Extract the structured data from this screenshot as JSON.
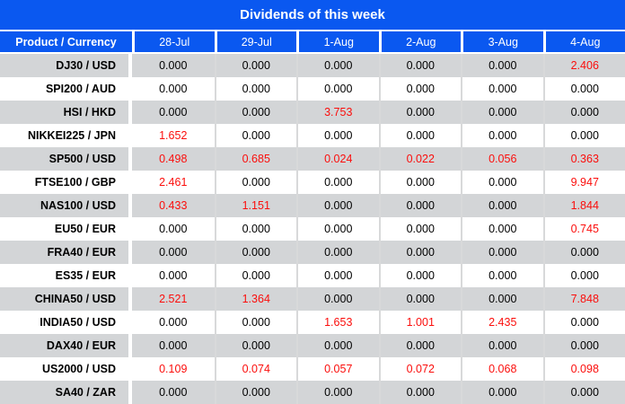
{
  "title": "Dividends of this week",
  "colors": {
    "accent_blue": "#0a58f0",
    "row_gray": "#d3d5d7",
    "value_red": "#fb0e0c",
    "value_black": "#000000"
  },
  "chart_data": {
    "type": "table",
    "title": "Dividends of this week",
    "columns": [
      "Product / Currency",
      "28-Jul",
      "29-Jul",
      "1-Aug",
      "2-Aug",
      "3-Aug",
      "4-Aug"
    ],
    "rows": [
      {
        "product": "DJ30 / USD",
        "values": [
          "0.000",
          "0.000",
          "0.000",
          "0.000",
          "0.000",
          "2.406"
        ]
      },
      {
        "product": "SPI200 / AUD",
        "values": [
          "0.000",
          "0.000",
          "0.000",
          "0.000",
          "0.000",
          "0.000"
        ]
      },
      {
        "product": "HSI / HKD",
        "values": [
          "0.000",
          "0.000",
          "3.753",
          "0.000",
          "0.000",
          "0.000"
        ]
      },
      {
        "product": "NIKKEI225 / JPN",
        "values": [
          "1.652",
          "0.000",
          "0.000",
          "0.000",
          "0.000",
          "0.000"
        ]
      },
      {
        "product": "SP500 / USD",
        "values": [
          "0.498",
          "0.685",
          "0.024",
          "0.022",
          "0.056",
          "0.363"
        ]
      },
      {
        "product": "FTSE100 / GBP",
        "values": [
          "2.461",
          "0.000",
          "0.000",
          "0.000",
          "0.000",
          "9.947"
        ]
      },
      {
        "product": "NAS100 / USD",
        "values": [
          "0.433",
          "1.151",
          "0.000",
          "0.000",
          "0.000",
          "1.844"
        ]
      },
      {
        "product": "EU50 / EUR",
        "values": [
          "0.000",
          "0.000",
          "0.000",
          "0.000",
          "0.000",
          "0.745"
        ]
      },
      {
        "product": "FRA40 / EUR",
        "values": [
          "0.000",
          "0.000",
          "0.000",
          "0.000",
          "0.000",
          "0.000"
        ]
      },
      {
        "product": "ES35 / EUR",
        "values": [
          "0.000",
          "0.000",
          "0.000",
          "0.000",
          "0.000",
          "0.000"
        ]
      },
      {
        "product": "CHINA50 / USD",
        "values": [
          "2.521",
          "1.364",
          "0.000",
          "0.000",
          "0.000",
          "7.848"
        ]
      },
      {
        "product": "INDIA50 / USD",
        "values": [
          "0.000",
          "0.000",
          "1.653",
          "1.001",
          "2.435",
          "0.000"
        ]
      },
      {
        "product": "DAX40 / EUR",
        "values": [
          "0.000",
          "0.000",
          "0.000",
          "0.000",
          "0.000",
          "0.000"
        ]
      },
      {
        "product": "US2000 / USD",
        "values": [
          "0.109",
          "0.074",
          "0.057",
          "0.072",
          "0.068",
          "0.098"
        ]
      },
      {
        "product": "SA40 / ZAR",
        "values": [
          "0.000",
          "0.000",
          "0.000",
          "0.000",
          "0.000",
          "0.000"
        ]
      }
    ]
  }
}
